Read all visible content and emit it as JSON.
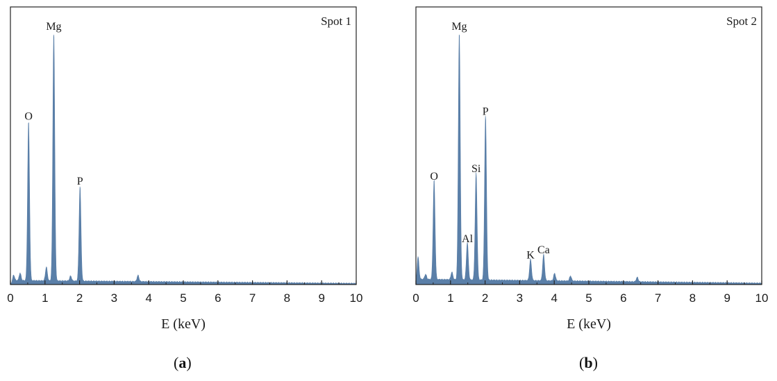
{
  "chart_data": [
    {
      "type": "area",
      "panel_label": "a",
      "spot_label": "Spot 1",
      "xlabel": "E (keV)",
      "ylabel": "",
      "xlim": [
        0,
        10
      ],
      "ylim": [
        0,
        1
      ],
      "xticks": [
        "0",
        "1",
        "2",
        "3",
        "4",
        "5",
        "6",
        "7",
        "8",
        "9",
        "10"
      ],
      "color": "#5a7fa8",
      "peaks": [
        {
          "label": "O",
          "x": 0.525,
          "height": 0.64
        },
        {
          "label": "Mg",
          "x": 1.254,
          "height": 1.0
        },
        {
          "label": "P",
          "x": 2.013,
          "height": 0.38
        }
      ],
      "minor_peaks": [
        {
          "x": 0.09,
          "height": 0.025
        },
        {
          "x": 0.28,
          "height": 0.03
        },
        {
          "x": 1.04,
          "height": 0.055
        },
        {
          "x": 1.74,
          "height": 0.02
        },
        {
          "x": 3.69,
          "height": 0.025
        }
      ],
      "background": {
        "start": 0.015,
        "end": 0.003
      }
    },
    {
      "type": "area",
      "panel_label": "b",
      "spot_label": "Spot 2",
      "xlabel": "E (keV)",
      "ylabel": "",
      "xlim": [
        0,
        10
      ],
      "ylim": [
        0,
        1
      ],
      "xticks": [
        "0",
        "1",
        "2",
        "3",
        "4",
        "5",
        "6",
        "7",
        "8",
        "9",
        "10"
      ],
      "color": "#5a7fa8",
      "peaks": [
        {
          "label": "O",
          "x": 0.525,
          "height": 0.4
        },
        {
          "label": "Mg",
          "x": 1.254,
          "height": 1.0
        },
        {
          "label": "Al",
          "x": 1.487,
          "height": 0.15
        },
        {
          "label": "Si",
          "x": 1.74,
          "height": 0.43
        },
        {
          "label": "P",
          "x": 2.013,
          "height": 0.66
        },
        {
          "label": "K",
          "x": 3.314,
          "height": 0.085
        },
        {
          "label": "Ca",
          "x": 3.692,
          "height": 0.105
        }
      ],
      "minor_peaks": [
        {
          "x": 0.06,
          "height": 0.1
        },
        {
          "x": 0.28,
          "height": 0.02
        },
        {
          "x": 1.04,
          "height": 0.03
        },
        {
          "x": 4.01,
          "height": 0.03
        },
        {
          "x": 4.47,
          "height": 0.02
        },
        {
          "x": 6.4,
          "height": 0.018
        }
      ],
      "background": {
        "start": 0.02,
        "end": 0.004
      }
    }
  ]
}
